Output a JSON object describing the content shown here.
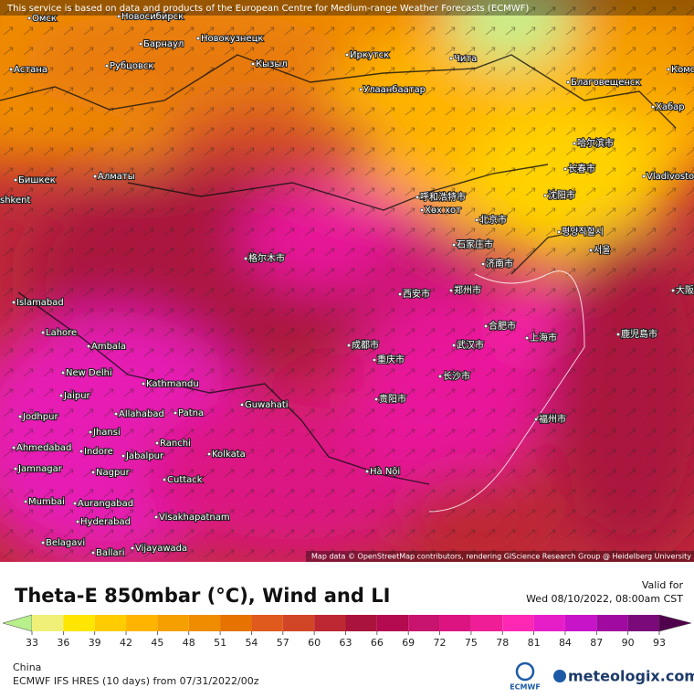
{
  "header": {
    "notice": "This service is based on data and products of the European Centre for Medium-range Weather Forecasts (ECMWF)"
  },
  "map": {
    "attribution": "Map data © OpenStreetMap contributors, rendering GIScience Research Group @ Heidelberg University",
    "labels": [
      "Омск",
      "Новосибирск",
      "Барнаул",
      "Новокузнецк",
      "Астана",
      "Рубцовск",
      "Кызыл",
      "Иркутск",
      "Чита",
      "Благовещенск",
      "Комс",
      "Улаанбаатар",
      "Хабар",
      "Бишкек",
      "Алматы",
      "Vladivostok",
      "呼和浩特市",
      "Хөх хот",
      "北京市",
      "沈阳市",
      "평양직할시",
      "서울",
      "shkent",
      "格尔木市",
      "Islamabad",
      "Lahore",
      "Ambala",
      "New Delhi",
      "Kathmandu",
      "Jaipur",
      "Jodhpur",
      "Allahabad",
      "Patna",
      "Guwahati",
      "Jhansi",
      "Ranchi",
      "Ahmedabad",
      "Indore",
      "Jabalpur",
      "Kolkata",
      "Jamnagar",
      "Nagpur",
      "Cuttack",
      "Mumbai",
      "Aurangabad",
      "Hyderabad",
      "Visakhapatnam",
      "Belagavi",
      "Ballari",
      "Vijayawada",
      "Hà Nội",
      "西安市",
      "郑州市",
      "石家庄市",
      "济南市",
      "合肥市",
      "成都市",
      "武汉市",
      "上海市",
      "重庆市",
      "长沙市",
      "贵阳市",
      "福州市",
      "大阪",
      "鹿児島市",
      "哈尔滨市",
      "长春市"
    ]
  },
  "title": "Theta-E 850mbar (°C), Wind and LI",
  "valid": {
    "label": "Valid for",
    "time": "Wed 08/10/2022, 08:00am CST"
  },
  "legend": {
    "ticks": [
      33,
      36,
      39,
      42,
      45,
      48,
      51,
      54,
      57,
      60,
      63,
      66,
      69,
      72,
      75,
      78,
      81,
      84,
      87,
      90,
      93
    ],
    "colors": [
      "#b8f08c",
      "#f0f078",
      "#ffe600",
      "#ffcc00",
      "#ffb400",
      "#f5a000",
      "#f08c00",
      "#e67300",
      "#e05a1e",
      "#d24628",
      "#be2832",
      "#aa143c",
      "#b40a50",
      "#c8146e",
      "#dc1482",
      "#f01e96",
      "#ff28b4",
      "#e61ec8",
      "#c814c8",
      "#a00aa0",
      "#7a0a7a",
      "#50004b"
    ]
  },
  "footer": {
    "region": "China",
    "model": "ECMWF IFS HRES (10 days) from 07/31/2022/00z",
    "ecmwf": "ECMWF",
    "brand": "meteologix.com"
  }
}
